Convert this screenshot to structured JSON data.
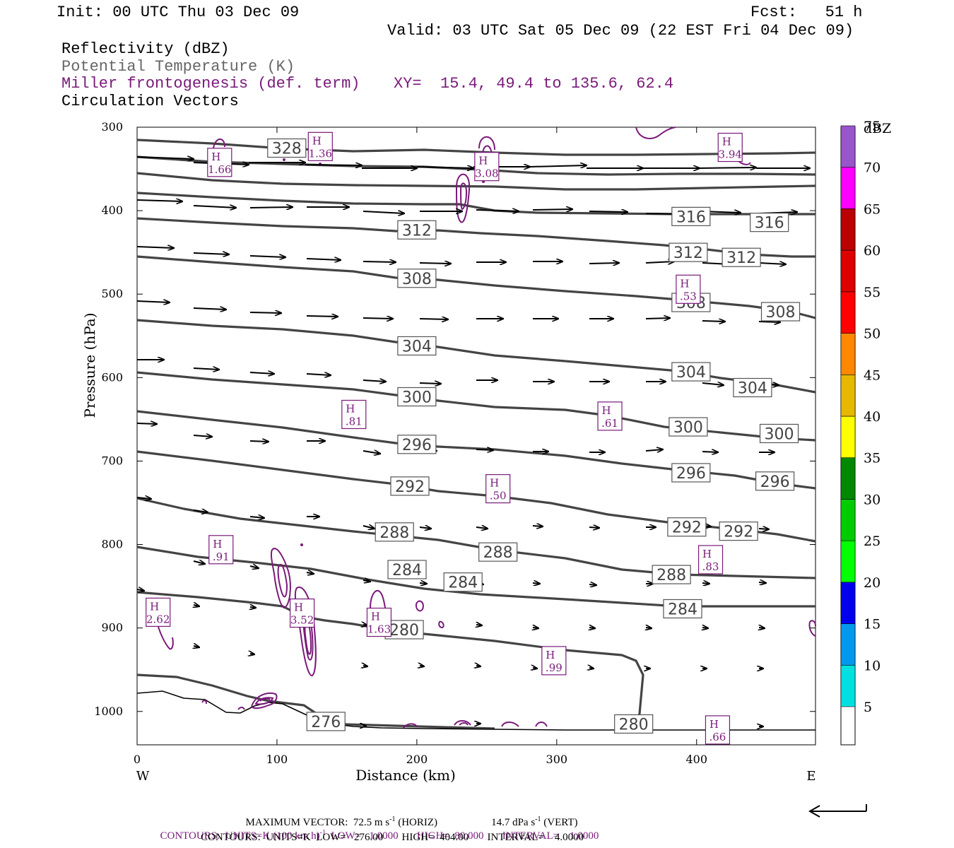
{
  "header": {
    "init": "Init: 00 UTC Thu 03 Dec 09",
    "fcst": "Fcst:   51 h",
    "valid": "Valid: 03 UTC Sat 05 Dec 09 (22 EST Fri 04 Dec 09)",
    "field1": "Reflectivity (dBZ)",
    "field2": "Potential Temperature (K)",
    "field3": "Miller frontogenesis (def. term)",
    "xy": "XY=  15.4, 49.4 to 135.6, 62.4",
    "field4": "Circulation Vectors"
  },
  "colors": {
    "theta": "#444444",
    "fronto": "#7a1a7a",
    "vector": "#000000"
  },
  "chart_data": {
    "type": "contour",
    "xlabel": "Distance (km)",
    "ylabel": "Pressure (hPa)",
    "xlim": [
      0,
      485
    ],
    "ylim": [
      1040,
      300
    ],
    "x_ticks": [
      0,
      100,
      200,
      300,
      400
    ],
    "y_ticks": [
      300,
      400,
      500,
      600,
      700,
      800,
      900,
      1000
    ],
    "x_ends": [
      "W",
      "E"
    ],
    "colorbar": {
      "title": "dBZ",
      "levels": [
        5,
        10,
        15,
        20,
        25,
        30,
        35,
        40,
        45,
        50,
        55,
        60,
        65,
        70,
        75
      ],
      "colors": [
        "#00e0e0",
        "#0099ee",
        "#0000ee",
        "#00ff00",
        "#00cc00",
        "#008800",
        "#ffff00",
        "#e6b800",
        "#ff8800",
        "#ff0000",
        "#dd0000",
        "#bb0000",
        "#ff00ff",
        "#9955cc",
        "#ffffff"
      ]
    },
    "theta_labels": [
      {
        "text": "328",
        "x": 107,
        "p": 325
      },
      {
        "text": "316",
        "x": 396,
        "p": 407
      },
      {
        "text": "316",
        "x": 452,
        "p": 414
      },
      {
        "text": "312",
        "x": 200,
        "p": 423
      },
      {
        "text": "312",
        "x": 394,
        "p": 450
      },
      {
        "text": "312",
        "x": 432,
        "p": 456
      },
      {
        "text": "308",
        "x": 200,
        "p": 481
      },
      {
        "text": "308",
        "x": 396,
        "p": 510
      },
      {
        "text": "308",
        "x": 460,
        "p": 521
      },
      {
        "text": "304",
        "x": 200,
        "p": 562
      },
      {
        "text": "304",
        "x": 396,
        "p": 593
      },
      {
        "text": "304",
        "x": 440,
        "p": 612
      },
      {
        "text": "300",
        "x": 200,
        "p": 623
      },
      {
        "text": "300",
        "x": 394,
        "p": 659
      },
      {
        "text": "300",
        "x": 459,
        "p": 667
      },
      {
        "text": "296",
        "x": 200,
        "p": 680
      },
      {
        "text": "296",
        "x": 396,
        "p": 714
      },
      {
        "text": "296",
        "x": 456,
        "p": 724
      },
      {
        "text": "292",
        "x": 195,
        "p": 730
      },
      {
        "text": "292",
        "x": 393,
        "p": 779
      },
      {
        "text": "292",
        "x": 430,
        "p": 784
      },
      {
        "text": "288",
        "x": 184,
        "p": 785
      },
      {
        "text": "288",
        "x": 258,
        "p": 809
      },
      {
        "text": "288",
        "x": 382,
        "p": 836
      },
      {
        "text": "284",
        "x": 193,
        "p": 830
      },
      {
        "text": "284",
        "x": 233,
        "p": 845
      },
      {
        "text": "284",
        "x": 390,
        "p": 877
      },
      {
        "text": "280",
        "x": 191,
        "p": 902
      },
      {
        "text": "280",
        "x": 355,
        "p": 1015
      },
      {
        "text": "276",
        "x": 135,
        "p": 1012
      }
    ],
    "fronto_maxima": [
      {
        "label": "H",
        "value": "1.66",
        "x": 59,
        "p": 343
      },
      {
        "label": "H",
        "value": "1.36",
        "x": 131,
        "p": 324
      },
      {
        "label": "H",
        "value": "3.08",
        "x": 250,
        "p": 348
      },
      {
        "label": "H",
        "value": "3.94",
        "x": 424,
        "p": 325
      },
      {
        "label": "H",
        "value": ".53",
        "x": 394,
        "p": 495
      },
      {
        "label": "H",
        "value": ".81",
        "x": 155,
        "p": 645
      },
      {
        "label": "H",
        "value": ".61",
        "x": 338,
        "p": 647
      },
      {
        "label": "H",
        "value": ".50",
        "x": 258,
        "p": 734
      },
      {
        "label": "H",
        "value": ".91",
        "x": 60,
        "p": 807
      },
      {
        "label": "H",
        "value": ".83",
        "x": 410,
        "p": 819
      },
      {
        "label": "H",
        "value": "2.62",
        "x": 15,
        "p": 882
      },
      {
        "label": "H",
        "value": "3.52",
        "x": 118,
        "p": 883
      },
      {
        "label": "H",
        "value": "1.63",
        "x": 173,
        "p": 894
      },
      {
        "label": "H",
        "value": ".99",
        "x": 298,
        "p": 940
      },
      {
        "label": "H",
        "value": ".66",
        "x": 415,
        "p": 1023
      }
    ]
  },
  "footer": {
    "max_vector": "MAXIMUM VECTOR:  72.5 m s",
    "max_vector_exp": "-1",
    "max_vector_h": " (HORIZ)",
    "max_vector_vert": "14.7 dPa s",
    "max_vector_vert_exp": "-1",
    "max_vector_vert_tail": " (VERT)",
    "contours1": "CONTOURS:  UNITS=K (100 km h)",
    "contours1_exp": "-1",
    "contours1_tail": "  LOW=   1.0000       HIGH=  80.000       INTERVAL=    1.0000",
    "contours2": "CONTOURS:  UNITS=K  LOW=   276.00       HIGH=  404.00       INTERVAL=    4.0000"
  }
}
